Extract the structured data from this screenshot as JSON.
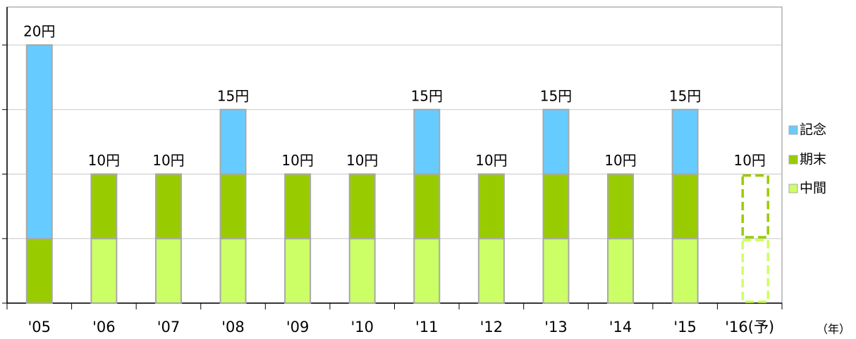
{
  "chart_data": {
    "type": "stacked_bar",
    "categories": [
      "'05",
      "'06",
      "'07",
      "'08",
      "'09",
      "'10",
      "'11",
      "'12",
      "'13",
      "'14",
      "'15",
      "'16(予)"
    ],
    "x_label": "（年）",
    "series": [
      {
        "name": "中間",
        "color": "#ccff66",
        "values": [
          0,
          5,
          5,
          5,
          5,
          5,
          5,
          5,
          5,
          5,
          5,
          5
        ]
      },
      {
        "name": "期末",
        "color": "#99cc00",
        "values": [
          5,
          5,
          5,
          5,
          5,
          5,
          5,
          5,
          5,
          5,
          5,
          5
        ]
      },
      {
        "name": "記念",
        "color": "#66ccff",
        "values": [
          15,
          0,
          0,
          5,
          0,
          0,
          5,
          0,
          5,
          0,
          5,
          0
        ]
      }
    ],
    "totals": [
      20,
      10,
      10,
      15,
      10,
      10,
      15,
      10,
      15,
      10,
      15,
      10
    ],
    "total_labels": [
      "20円",
      "10円",
      "10円",
      "15円",
      "10円",
      "10円",
      "15円",
      "10円",
      "15円",
      "10円",
      "15円",
      "10円"
    ],
    "forecast": [
      false,
      false,
      false,
      false,
      false,
      false,
      false,
      false,
      false,
      false,
      false,
      true
    ],
    "ylim": [
      0,
      20
    ],
    "yticks": [
      0,
      5,
      10,
      15,
      20
    ],
    "grid": true,
    "legend": "right"
  }
}
